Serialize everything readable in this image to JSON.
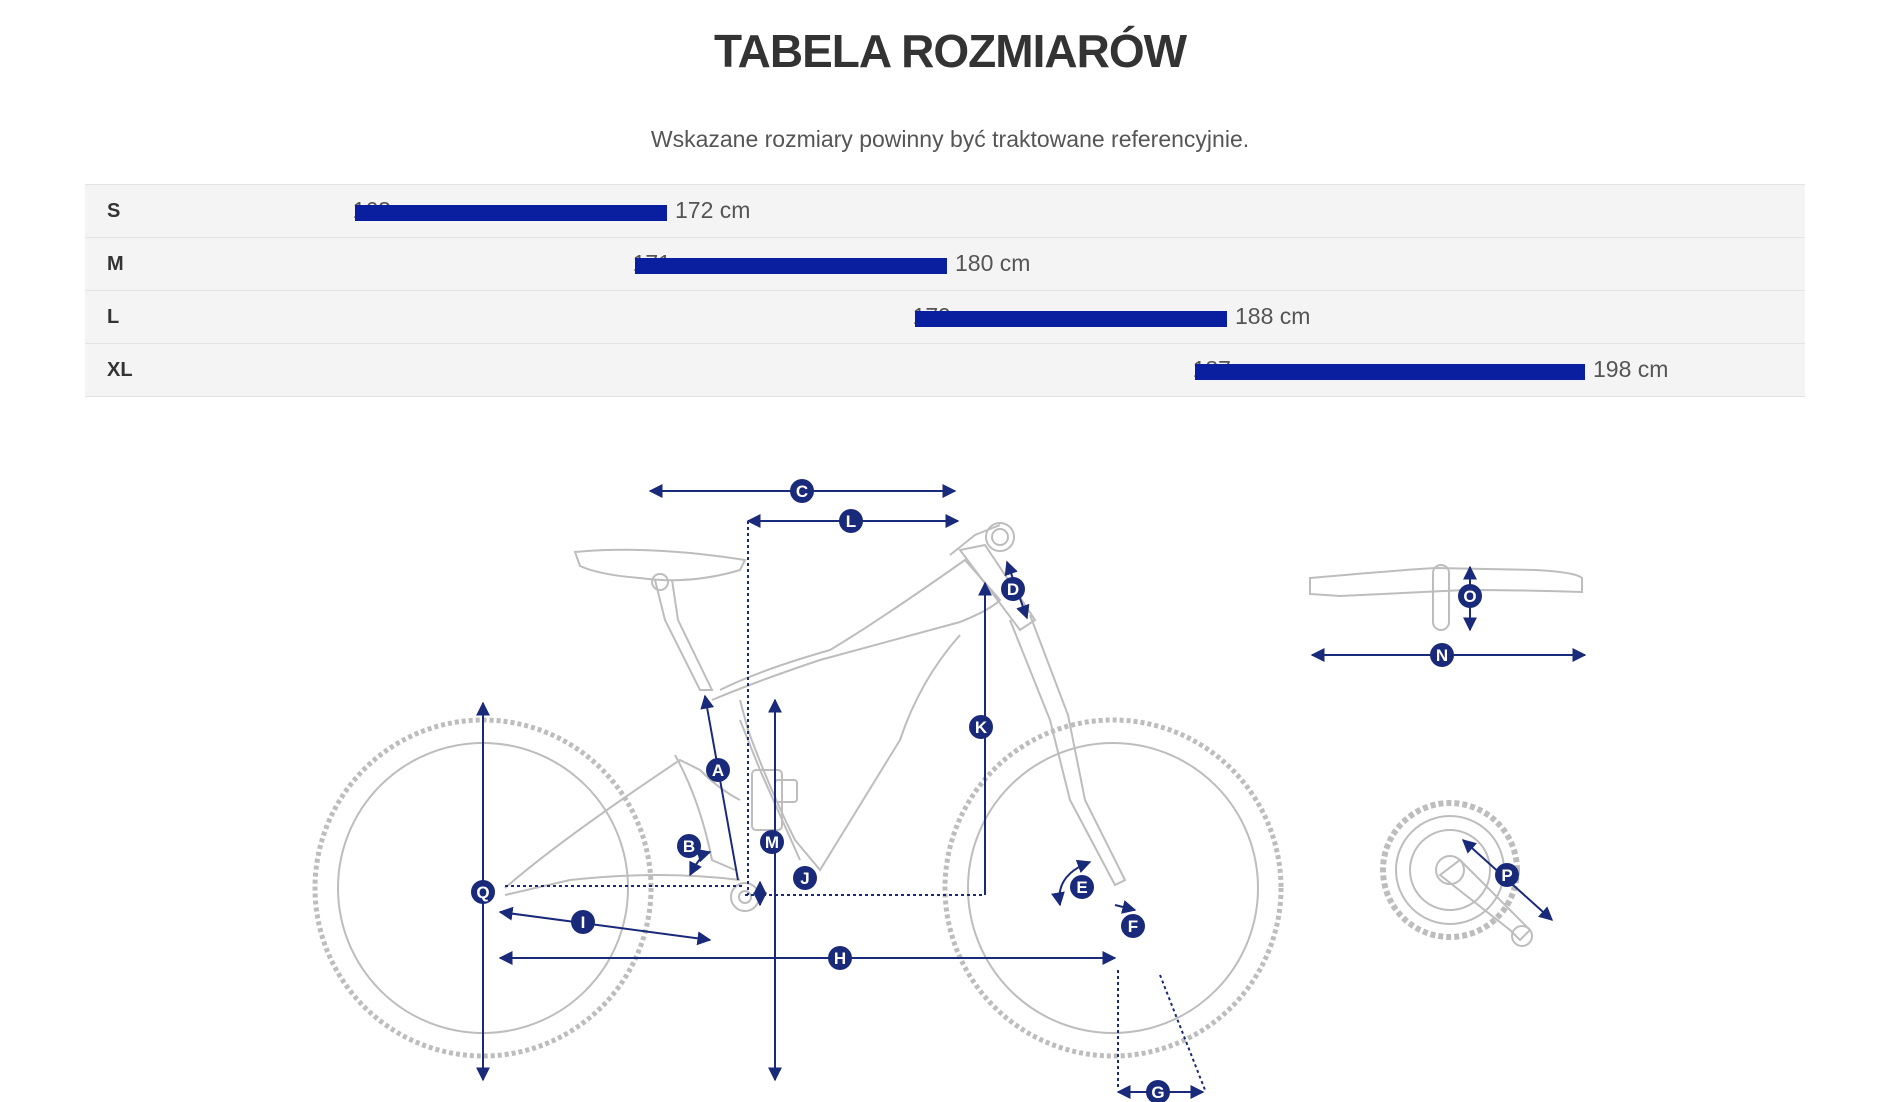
{
  "title": "TABELA ROZMIARÓW",
  "subtitle": "Wskazane rozmiary powinny być traktowane referencyjnie.",
  "sizes": [
    {
      "label": "S",
      "min": "163 cm",
      "max": "172 cm"
    },
    {
      "label": "M",
      "min": "171 cm",
      "max": "180 cm"
    },
    {
      "label": "L",
      "min": "179 cm",
      "max": "188 cm"
    },
    {
      "label": "XL",
      "min": "187 cm",
      "max": "198 cm"
    }
  ],
  "diagram": {
    "labels": [
      "A",
      "B",
      "C",
      "D",
      "E",
      "F",
      "G",
      "H",
      "I",
      "J",
      "K",
      "L",
      "M",
      "N",
      "O",
      "P",
      "Q"
    ]
  },
  "colors": {
    "bar": "#0a1fa0",
    "measure": "#1a2a7a",
    "outline": "#bdbdbd"
  }
}
